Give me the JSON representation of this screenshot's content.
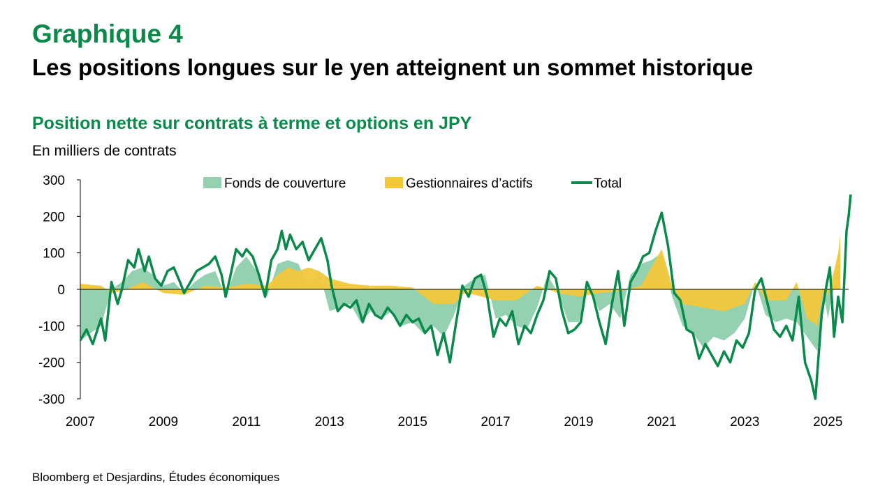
{
  "header": {
    "label": "Graphique 4",
    "title": "Les positions longues sur le yen atteignent un sommet historique"
  },
  "chart_data": {
    "type": "area",
    "subtitle": "Position nette sur contrats à terme et options en JPY",
    "unit_label": "En milliers de contrats",
    "ylim": [
      -300,
      300
    ],
    "y_ticks": [
      "300",
      "200",
      "100",
      "0",
      "-100",
      "-200",
      "-300"
    ],
    "xlim": [
      2007,
      2025.5
    ],
    "x_ticks": [
      "2007",
      "2009",
      "2011",
      "2013",
      "2015",
      "2017",
      "2019",
      "2021",
      "2023",
      "2025"
    ],
    "legend_position": "top",
    "colors": {
      "hedge": "#93d1b0",
      "asset": "#f2c73a",
      "total": "#0a8a4a"
    },
    "series": [
      {
        "name": "Fonds de couverture",
        "values": [
          [
            2007.0,
            -140
          ],
          [
            2007.25,
            -120
          ],
          [
            2007.5,
            -100
          ],
          [
            2007.75,
            0
          ],
          [
            2008.0,
            20
          ],
          [
            2008.25,
            50
          ],
          [
            2008.5,
            60
          ],
          [
            2008.75,
            40
          ],
          [
            2009.0,
            10
          ],
          [
            2009.25,
            20
          ],
          [
            2009.5,
            -10
          ],
          [
            2009.75,
            20
          ],
          [
            2010.0,
            40
          ],
          [
            2010.25,
            50
          ],
          [
            2010.5,
            -20
          ],
          [
            2010.75,
            60
          ],
          [
            2011.0,
            90
          ],
          [
            2011.25,
            50
          ],
          [
            2011.5,
            -20
          ],
          [
            2011.75,
            70
          ],
          [
            2012.0,
            80
          ],
          [
            2012.25,
            70
          ],
          [
            2012.5,
            5
          ],
          [
            2012.75,
            50
          ],
          [
            2013.0,
            -60
          ],
          [
            2013.25,
            -50
          ],
          [
            2013.5,
            -40
          ],
          [
            2013.75,
            -90
          ],
          [
            2014.0,
            -60
          ],
          [
            2014.25,
            -80
          ],
          [
            2014.5,
            -60
          ],
          [
            2014.75,
            -100
          ],
          [
            2015.0,
            -90
          ],
          [
            2015.25,
            -120
          ],
          [
            2015.5,
            -100
          ],
          [
            2015.75,
            -130
          ],
          [
            2016.0,
            -70
          ],
          [
            2016.25,
            10
          ],
          [
            2016.5,
            30
          ],
          [
            2016.75,
            40
          ],
          [
            2017.0,
            -80
          ],
          [
            2017.25,
            -70
          ],
          [
            2017.5,
            -100
          ],
          [
            2017.75,
            -110
          ],
          [
            2018.0,
            -50
          ],
          [
            2018.25,
            40
          ],
          [
            2018.5,
            -10
          ],
          [
            2018.75,
            -90
          ],
          [
            2019.0,
            -90
          ],
          [
            2019.25,
            10
          ],
          [
            2019.5,
            -60
          ],
          [
            2019.75,
            -40
          ],
          [
            2020.0,
            -80
          ],
          [
            2020.25,
            40
          ],
          [
            2020.5,
            70
          ],
          [
            2020.75,
            80
          ],
          [
            2021.0,
            100
          ],
          [
            2021.25,
            -20
          ],
          [
            2021.5,
            -100
          ],
          [
            2021.75,
            -120
          ],
          [
            2022.0,
            -160
          ],
          [
            2022.25,
            -130
          ],
          [
            2022.5,
            -140
          ],
          [
            2022.75,
            -120
          ],
          [
            2023.0,
            -80
          ],
          [
            2023.25,
            20
          ],
          [
            2023.5,
            -70
          ],
          [
            2023.75,
            -90
          ],
          [
            2024.0,
            -80
          ],
          [
            2024.25,
            -90
          ],
          [
            2024.5,
            -130
          ],
          [
            2024.75,
            -170
          ],
          [
            2024.9,
            -10
          ],
          [
            2025.0,
            -80
          ],
          [
            2025.1,
            -20
          ],
          [
            2025.25,
            70
          ],
          [
            2025.3,
            80
          ]
        ]
      },
      {
        "name": "Gestionnaires d’actifs",
        "values": [
          [
            2007.0,
            15
          ],
          [
            2007.5,
            10
          ],
          [
            2007.75,
            -10
          ],
          [
            2008.0,
            -5
          ],
          [
            2008.5,
            20
          ],
          [
            2009.0,
            -10
          ],
          [
            2009.5,
            -15
          ],
          [
            2010.0,
            10
          ],
          [
            2010.5,
            5
          ],
          [
            2011.0,
            15
          ],
          [
            2011.5,
            10
          ],
          [
            2011.75,
            40
          ],
          [
            2012.0,
            60
          ],
          [
            2012.25,
            50
          ],
          [
            2012.5,
            60
          ],
          [
            2012.75,
            50
          ],
          [
            2013.0,
            30
          ],
          [
            2013.5,
            15
          ],
          [
            2014.0,
            10
          ],
          [
            2014.5,
            10
          ],
          [
            2015.0,
            5
          ],
          [
            2015.5,
            -40
          ],
          [
            2016.0,
            -40
          ],
          [
            2016.25,
            -10
          ],
          [
            2016.5,
            -15
          ],
          [
            2017.0,
            -30
          ],
          [
            2017.5,
            -30
          ],
          [
            2018.0,
            10
          ],
          [
            2018.5,
            -10
          ],
          [
            2019.0,
            -20
          ],
          [
            2019.5,
            -10
          ],
          [
            2020.0,
            -5
          ],
          [
            2020.5,
            10
          ],
          [
            2020.75,
            60
          ],
          [
            2021.0,
            110
          ],
          [
            2021.25,
            10
          ],
          [
            2021.5,
            -40
          ],
          [
            2022.0,
            -50
          ],
          [
            2022.5,
            -60
          ],
          [
            2023.0,
            -40
          ],
          [
            2023.25,
            20
          ],
          [
            2023.5,
            -30
          ],
          [
            2024.0,
            -30
          ],
          [
            2024.25,
            20
          ],
          [
            2024.5,
            -80
          ],
          [
            2024.75,
            -100
          ],
          [
            2024.9,
            0
          ],
          [
            2025.0,
            -20
          ],
          [
            2025.25,
            100
          ],
          [
            2025.3,
            150
          ]
        ]
      },
      {
        "name": "Total",
        "values": [
          [
            2007.0,
            -140
          ],
          [
            2007.15,
            -110
          ],
          [
            2007.3,
            -150
          ],
          [
            2007.5,
            -80
          ],
          [
            2007.6,
            -140
          ],
          [
            2007.75,
            20
          ],
          [
            2007.9,
            -40
          ],
          [
            2008.0,
            0
          ],
          [
            2008.15,
            80
          ],
          [
            2008.3,
            60
          ],
          [
            2008.4,
            110
          ],
          [
            2008.55,
            50
          ],
          [
            2008.65,
            90
          ],
          [
            2008.8,
            30
          ],
          [
            2008.95,
            10
          ],
          [
            2009.1,
            50
          ],
          [
            2009.25,
            60
          ],
          [
            2009.4,
            20
          ],
          [
            2009.5,
            -10
          ],
          [
            2009.65,
            20
          ],
          [
            2009.8,
            50
          ],
          [
            2009.95,
            60
          ],
          [
            2010.1,
            70
          ],
          [
            2010.25,
            90
          ],
          [
            2010.4,
            40
          ],
          [
            2010.5,
            -20
          ],
          [
            2010.6,
            30
          ],
          [
            2010.75,
            110
          ],
          [
            2010.9,
            90
          ],
          [
            2011.0,
            110
          ],
          [
            2011.15,
            90
          ],
          [
            2011.3,
            40
          ],
          [
            2011.45,
            -20
          ],
          [
            2011.6,
            80
          ],
          [
            2011.75,
            110
          ],
          [
            2011.85,
            160
          ],
          [
            2011.95,
            110
          ],
          [
            2012.05,
            150
          ],
          [
            2012.2,
            110
          ],
          [
            2012.35,
            130
          ],
          [
            2012.5,
            80
          ],
          [
            2012.65,
            110
          ],
          [
            2012.8,
            140
          ],
          [
            2012.95,
            80
          ],
          [
            2013.05,
            10
          ],
          [
            2013.2,
            -60
          ],
          [
            2013.35,
            -40
          ],
          [
            2013.5,
            -50
          ],
          [
            2013.65,
            -30
          ],
          [
            2013.8,
            -90
          ],
          [
            2013.95,
            -40
          ],
          [
            2014.1,
            -70
          ],
          [
            2014.25,
            -80
          ],
          [
            2014.4,
            -50
          ],
          [
            2014.55,
            -70
          ],
          [
            2014.7,
            -100
          ],
          [
            2014.85,
            -70
          ],
          [
            2015.0,
            -90
          ],
          [
            2015.15,
            -80
          ],
          [
            2015.3,
            -120
          ],
          [
            2015.45,
            -100
          ],
          [
            2015.6,
            -180
          ],
          [
            2015.75,
            -120
          ],
          [
            2015.9,
            -200
          ],
          [
            2016.05,
            -90
          ],
          [
            2016.2,
            10
          ],
          [
            2016.35,
            -20
          ],
          [
            2016.5,
            30
          ],
          [
            2016.65,
            40
          ],
          [
            2016.8,
            -20
          ],
          [
            2016.95,
            -130
          ],
          [
            2017.1,
            -80
          ],
          [
            2017.25,
            -100
          ],
          [
            2017.4,
            -60
          ],
          [
            2017.55,
            -150
          ],
          [
            2017.7,
            -100
          ],
          [
            2017.85,
            -120
          ],
          [
            2018.0,
            -70
          ],
          [
            2018.15,
            -30
          ],
          [
            2018.3,
            50
          ],
          [
            2018.45,
            30
          ],
          [
            2018.6,
            -60
          ],
          [
            2018.75,
            -120
          ],
          [
            2018.9,
            -110
          ],
          [
            2019.05,
            -90
          ],
          [
            2019.2,
            20
          ],
          [
            2019.35,
            -20
          ],
          [
            2019.5,
            -90
          ],
          [
            2019.65,
            -150
          ],
          [
            2019.8,
            -40
          ],
          [
            2019.95,
            50
          ],
          [
            2020.1,
            -100
          ],
          [
            2020.25,
            20
          ],
          [
            2020.4,
            50
          ],
          [
            2020.55,
            90
          ],
          [
            2020.7,
            100
          ],
          [
            2020.85,
            160
          ],
          [
            2021.0,
            210
          ],
          [
            2021.15,
            120
          ],
          [
            2021.3,
            -10
          ],
          [
            2021.45,
            -30
          ],
          [
            2021.6,
            -110
          ],
          [
            2021.75,
            -120
          ],
          [
            2021.9,
            -190
          ],
          [
            2022.05,
            -150
          ],
          [
            2022.2,
            -180
          ],
          [
            2022.35,
            -210
          ],
          [
            2022.5,
            -170
          ],
          [
            2022.65,
            -200
          ],
          [
            2022.8,
            -140
          ],
          [
            2022.95,
            -160
          ],
          [
            2023.1,
            -120
          ],
          [
            2023.25,
            0
          ],
          [
            2023.4,
            30
          ],
          [
            2023.55,
            -40
          ],
          [
            2023.7,
            -110
          ],
          [
            2023.85,
            -130
          ],
          [
            2024.0,
            -100
          ],
          [
            2024.15,
            -140
          ],
          [
            2024.3,
            -20
          ],
          [
            2024.45,
            -200
          ],
          [
            2024.6,
            -250
          ],
          [
            2024.7,
            -300
          ],
          [
            2024.85,
            -70
          ],
          [
            2024.95,
            0
          ],
          [
            2025.05,
            60
          ],
          [
            2025.15,
            -130
          ],
          [
            2025.25,
            -20
          ],
          [
            2025.35,
            -90
          ],
          [
            2025.45,
            160
          ],
          [
            2025.5,
            200
          ],
          [
            2025.55,
            260
          ]
        ]
      }
    ]
  },
  "footer": {
    "source": "Bloomberg et Desjardins, Études économiques"
  }
}
